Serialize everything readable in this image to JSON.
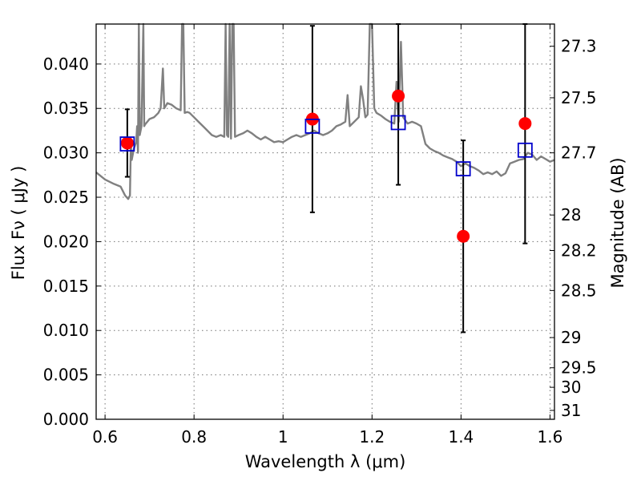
{
  "chart_data": {
    "type": "scatter",
    "title": "",
    "xlabel": "Wavelength  λ (μm)",
    "ylabel": "Flux  Fν  ( μJy )",
    "ylabel_right": "Magnitude (AB)",
    "xlim": [
      0.58,
      1.61
    ],
    "ylim": [
      0.0,
      0.0445
    ],
    "grid": true,
    "x_ticks": [
      {
        "value": 0.6,
        "label": "0.6"
      },
      {
        "value": 0.8,
        "label": "0.8"
      },
      {
        "value": 1.0,
        "label": "1"
      },
      {
        "value": 1.2,
        "label": "1.2"
      },
      {
        "value": 1.4,
        "label": "1.4"
      },
      {
        "value": 1.6,
        "label": "1.6"
      }
    ],
    "y_ticks": [
      {
        "value": 0.0,
        "label": "0.000"
      },
      {
        "value": 0.005,
        "label": "0.005"
      },
      {
        "value": 0.01,
        "label": "0.010"
      },
      {
        "value": 0.015,
        "label": "0.015"
      },
      {
        "value": 0.02,
        "label": "0.020"
      },
      {
        "value": 0.025,
        "label": "0.025"
      },
      {
        "value": 0.03,
        "label": "0.030"
      },
      {
        "value": 0.035,
        "label": "0.035"
      },
      {
        "value": 0.04,
        "label": "0.040"
      }
    ],
    "right_ticks": [
      {
        "flux": 0.042,
        "label": "27.3"
      },
      {
        "flux": 0.0362,
        "label": "27.5"
      },
      {
        "flux": 0.03,
        "label": "27.7"
      },
      {
        "flux": 0.023,
        "label": "28"
      },
      {
        "flux": 0.019,
        "label": "28.2"
      },
      {
        "flux": 0.0145,
        "label": "28.5"
      },
      {
        "flux": 0.0092,
        "label": "29"
      },
      {
        "flux": 0.0058,
        "label": "29.5"
      },
      {
        "flux": 0.0036,
        "label": "30"
      },
      {
        "flux": 0.001,
        "label": "31"
      }
    ],
    "series": [
      {
        "name": "Model spectrum",
        "kind": "line",
        "color": "#808080",
        "points": [
          [
            0.58,
            0.0278
          ],
          [
            0.6,
            0.027
          ],
          [
            0.62,
            0.0265
          ],
          [
            0.635,
            0.0262
          ],
          [
            0.645,
            0.0252
          ],
          [
            0.652,
            0.0248
          ],
          [
            0.656,
            0.0252
          ],
          [
            0.658,
            0.031
          ],
          [
            0.66,
            0.0292
          ],
          [
            0.665,
            0.0305
          ],
          [
            0.67,
            0.0312
          ],
          [
            0.672,
            0.033
          ],
          [
            0.674,
            0.03
          ],
          [
            0.676,
            0.0445
          ],
          [
            0.678,
            0.032
          ],
          [
            0.682,
            0.033
          ],
          [
            0.686,
            0.0445
          ],
          [
            0.688,
            0.033
          ],
          [
            0.69,
            0.0332
          ],
          [
            0.7,
            0.0338
          ],
          [
            0.71,
            0.034
          ],
          [
            0.72,
            0.0345
          ],
          [
            0.725,
            0.035
          ],
          [
            0.73,
            0.0395
          ],
          [
            0.733,
            0.035
          ],
          [
            0.74,
            0.0356
          ],
          [
            0.75,
            0.0354
          ],
          [
            0.76,
            0.035
          ],
          [
            0.77,
            0.0348
          ],
          [
            0.773,
            0.0445
          ],
          [
            0.776,
            0.0445
          ],
          [
            0.779,
            0.0345
          ],
          [
            0.785,
            0.0346
          ],
          [
            0.79,
            0.0345
          ],
          [
            0.8,
            0.034
          ],
          [
            0.81,
            0.0335
          ],
          [
            0.82,
            0.033
          ],
          [
            0.83,
            0.0325
          ],
          [
            0.84,
            0.032
          ],
          [
            0.85,
            0.0318
          ],
          [
            0.86,
            0.032
          ],
          [
            0.868,
            0.0318
          ],
          [
            0.871,
            0.0445
          ],
          [
            0.874,
            0.032
          ],
          [
            0.877,
            0.0318
          ],
          [
            0.88,
            0.0445
          ],
          [
            0.883,
            0.0316
          ],
          [
            0.886,
            0.0445
          ],
          [
            0.889,
            0.0445
          ],
          [
            0.892,
            0.0318
          ],
          [
            0.9,
            0.032
          ],
          [
            0.91,
            0.0322
          ],
          [
            0.92,
            0.0325
          ],
          [
            0.93,
            0.0322
          ],
          [
            0.94,
            0.0318
          ],
          [
            0.95,
            0.0315
          ],
          [
            0.96,
            0.0318
          ],
          [
            0.97,
            0.0315
          ],
          [
            0.98,
            0.0312
          ],
          [
            0.99,
            0.0313
          ],
          [
            1.0,
            0.0312
          ],
          [
            1.01,
            0.0315
          ],
          [
            1.02,
            0.0318
          ],
          [
            1.03,
            0.032
          ],
          [
            1.04,
            0.0318
          ],
          [
            1.05,
            0.032
          ],
          [
            1.06,
            0.0322
          ],
          [
            1.07,
            0.0325
          ],
          [
            1.08,
            0.0322
          ],
          [
            1.09,
            0.032
          ],
          [
            1.1,
            0.0322
          ],
          [
            1.11,
            0.0325
          ],
          [
            1.12,
            0.033
          ],
          [
            1.13,
            0.0332
          ],
          [
            1.14,
            0.0335
          ],
          [
            1.145,
            0.0365
          ],
          [
            1.15,
            0.033
          ],
          [
            1.16,
            0.0335
          ],
          [
            1.17,
            0.034
          ],
          [
            1.175,
            0.0375
          ],
          [
            1.18,
            0.036
          ],
          [
            1.185,
            0.034
          ],
          [
            1.19,
            0.0343
          ],
          [
            1.195,
            0.0445
          ],
          [
            1.2,
            0.0445
          ],
          [
            1.205,
            0.035
          ],
          [
            1.21,
            0.0345
          ],
          [
            1.22,
            0.0342
          ],
          [
            1.23,
            0.0338
          ],
          [
            1.24,
            0.0335
          ],
          [
            1.25,
            0.0333
          ],
          [
            1.255,
            0.038
          ],
          [
            1.26,
            0.0335
          ],
          [
            1.265,
            0.0425
          ],
          [
            1.27,
            0.034
          ],
          [
            1.28,
            0.0333
          ],
          [
            1.29,
            0.0335
          ],
          [
            1.3,
            0.0333
          ],
          [
            1.31,
            0.033
          ],
          [
            1.32,
            0.031
          ],
          [
            1.33,
            0.0305
          ],
          [
            1.34,
            0.0302
          ],
          [
            1.35,
            0.03
          ],
          [
            1.36,
            0.0297
          ],
          [
            1.37,
            0.0295
          ],
          [
            1.38,
            0.0293
          ],
          [
            1.39,
            0.029
          ],
          [
            1.4,
            0.0285
          ],
          [
            1.41,
            0.0288
          ],
          [
            1.42,
            0.0285
          ],
          [
            1.43,
            0.0283
          ],
          [
            1.44,
            0.028
          ],
          [
            1.45,
            0.0276
          ],
          [
            1.46,
            0.0278
          ],
          [
            1.47,
            0.0276
          ],
          [
            1.48,
            0.0279
          ],
          [
            1.49,
            0.0274
          ],
          [
            1.5,
            0.0277
          ],
          [
            1.51,
            0.0288
          ],
          [
            1.52,
            0.029
          ],
          [
            1.53,
            0.0292
          ],
          [
            1.54,
            0.0293
          ],
          [
            1.55,
            0.03
          ],
          [
            1.56,
            0.0298
          ],
          [
            1.57,
            0.0292
          ],
          [
            1.58,
            0.0296
          ],
          [
            1.59,
            0.0293
          ],
          [
            1.6,
            0.029
          ],
          [
            1.61,
            0.0292
          ]
        ]
      },
      {
        "name": "Observed flux",
        "kind": "points-errorbars",
        "color": "#ff0000",
        "points": [
          {
            "x": 0.65,
            "y": 0.0311,
            "err": 0.0038
          },
          {
            "x": 1.066,
            "y": 0.0338,
            "err": 0.0105
          },
          {
            "x": 1.259,
            "y": 0.0364,
            "err": 0.01
          },
          {
            "x": 1.405,
            "y": 0.0206,
            "err": 0.0108
          },
          {
            "x": 1.544,
            "y": 0.0333,
            "err": 0.0135
          }
        ]
      },
      {
        "name": "Model photometry",
        "kind": "squares",
        "color": "#0000cc",
        "points": [
          {
            "x": 0.65,
            "y": 0.031
          },
          {
            "x": 1.066,
            "y": 0.033
          },
          {
            "x": 1.259,
            "y": 0.0334
          },
          {
            "x": 1.405,
            "y": 0.0282
          },
          {
            "x": 1.544,
            "y": 0.0303
          }
        ]
      }
    ]
  }
}
